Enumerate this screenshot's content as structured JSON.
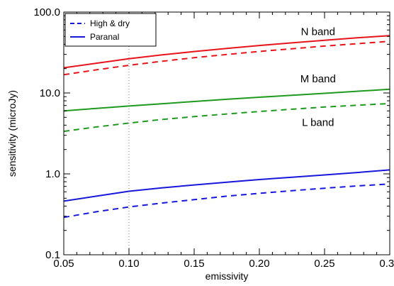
{
  "chart_data": {
    "type": "line",
    "xlabel": "emissivity",
    "ylabel": "sensitivity (microJy)",
    "xlim": [
      0.05,
      0.3
    ],
    "ylim": [
      0.1,
      100.0
    ],
    "y_scale": "log",
    "x_tick_labels": [
      "0.05",
      "0.10",
      "0.15",
      "0.20",
      "0.25",
      "0.30"
    ],
    "y_tick_labels": [
      "0.1",
      "1.0",
      "10.0",
      "100.0"
    ],
    "reference_line": {
      "x": 0.1,
      "style": "dotted"
    },
    "annotations": [
      {
        "text": "N band",
        "x": 0.245,
        "y": 52
      },
      {
        "text": "M band",
        "x": 0.245,
        "y": 13.5
      },
      {
        "text": "L band",
        "x": 0.245,
        "y": 3.9
      }
    ],
    "legend": {
      "placement": "top-left",
      "entries": [
        {
          "label": "High & dry",
          "style": "dashed"
        },
        {
          "label": "Paranal",
          "style": "solid"
        }
      ]
    },
    "series": [
      {
        "band": "N band",
        "site": "Paranal",
        "color": "#e8141b",
        "style": "solid",
        "points": [
          [
            0.05,
            20.5
          ],
          [
            0.075,
            23.3
          ],
          [
            0.1,
            26.5
          ],
          [
            0.125,
            29.5
          ],
          [
            0.15,
            32.5
          ],
          [
            0.175,
            35.5
          ],
          [
            0.2,
            38.6
          ],
          [
            0.225,
            41.6
          ],
          [
            0.25,
            44.8
          ],
          [
            0.275,
            48.0
          ],
          [
            0.3,
            51.0
          ]
        ]
      },
      {
        "band": "N band",
        "site": "High & dry",
        "color": "#e8141b",
        "style": "dashed",
        "points": [
          [
            0.05,
            16.8
          ],
          [
            0.075,
            19.3
          ],
          [
            0.1,
            22.0
          ],
          [
            0.125,
            24.6
          ],
          [
            0.15,
            27.3
          ],
          [
            0.175,
            29.9
          ],
          [
            0.2,
            32.6
          ],
          [
            0.225,
            35.2
          ],
          [
            0.25,
            38.0
          ],
          [
            0.275,
            40.6
          ],
          [
            0.3,
            43.5
          ]
        ]
      },
      {
        "band": "M band",
        "site": "Paranal",
        "color": "#1e9a1e",
        "style": "solid",
        "points": [
          [
            0.05,
            6.0
          ],
          [
            0.075,
            6.45
          ],
          [
            0.1,
            6.9
          ],
          [
            0.125,
            7.35
          ],
          [
            0.15,
            7.85
          ],
          [
            0.175,
            8.35
          ],
          [
            0.2,
            8.85
          ],
          [
            0.225,
            9.35
          ],
          [
            0.25,
            9.9
          ],
          [
            0.275,
            10.5
          ],
          [
            0.3,
            11.1
          ]
        ]
      },
      {
        "band": "M band",
        "site": "High & dry",
        "color": "#1e9a1e",
        "style": "dashed",
        "points": [
          [
            0.05,
            3.35
          ],
          [
            0.075,
            3.8
          ],
          [
            0.1,
            4.25
          ],
          [
            0.125,
            4.7
          ],
          [
            0.15,
            5.1
          ],
          [
            0.175,
            5.5
          ],
          [
            0.2,
            5.9
          ],
          [
            0.225,
            6.3
          ],
          [
            0.25,
            6.7
          ],
          [
            0.275,
            7.05
          ],
          [
            0.3,
            7.4
          ]
        ]
      },
      {
        "band": "L band",
        "site": "Paranal",
        "color": "#1717dd",
        "style": "solid",
        "points": [
          [
            0.05,
            0.46
          ],
          [
            0.075,
            0.53
          ],
          [
            0.1,
            0.61
          ],
          [
            0.125,
            0.67
          ],
          [
            0.15,
            0.73
          ],
          [
            0.175,
            0.79
          ],
          [
            0.2,
            0.85
          ],
          [
            0.225,
            0.91
          ],
          [
            0.25,
            0.97
          ],
          [
            0.275,
            1.04
          ],
          [
            0.3,
            1.12
          ]
        ]
      },
      {
        "band": "L band",
        "site": "High & dry",
        "color": "#1717dd",
        "style": "dashed",
        "points": [
          [
            0.05,
            0.29
          ],
          [
            0.075,
            0.34
          ],
          [
            0.1,
            0.39
          ],
          [
            0.125,
            0.435
          ],
          [
            0.15,
            0.48
          ],
          [
            0.175,
            0.53
          ],
          [
            0.2,
            0.575
          ],
          [
            0.225,
            0.62
          ],
          [
            0.25,
            0.665
          ],
          [
            0.275,
            0.71
          ],
          [
            0.3,
            0.75
          ]
        ]
      }
    ]
  }
}
